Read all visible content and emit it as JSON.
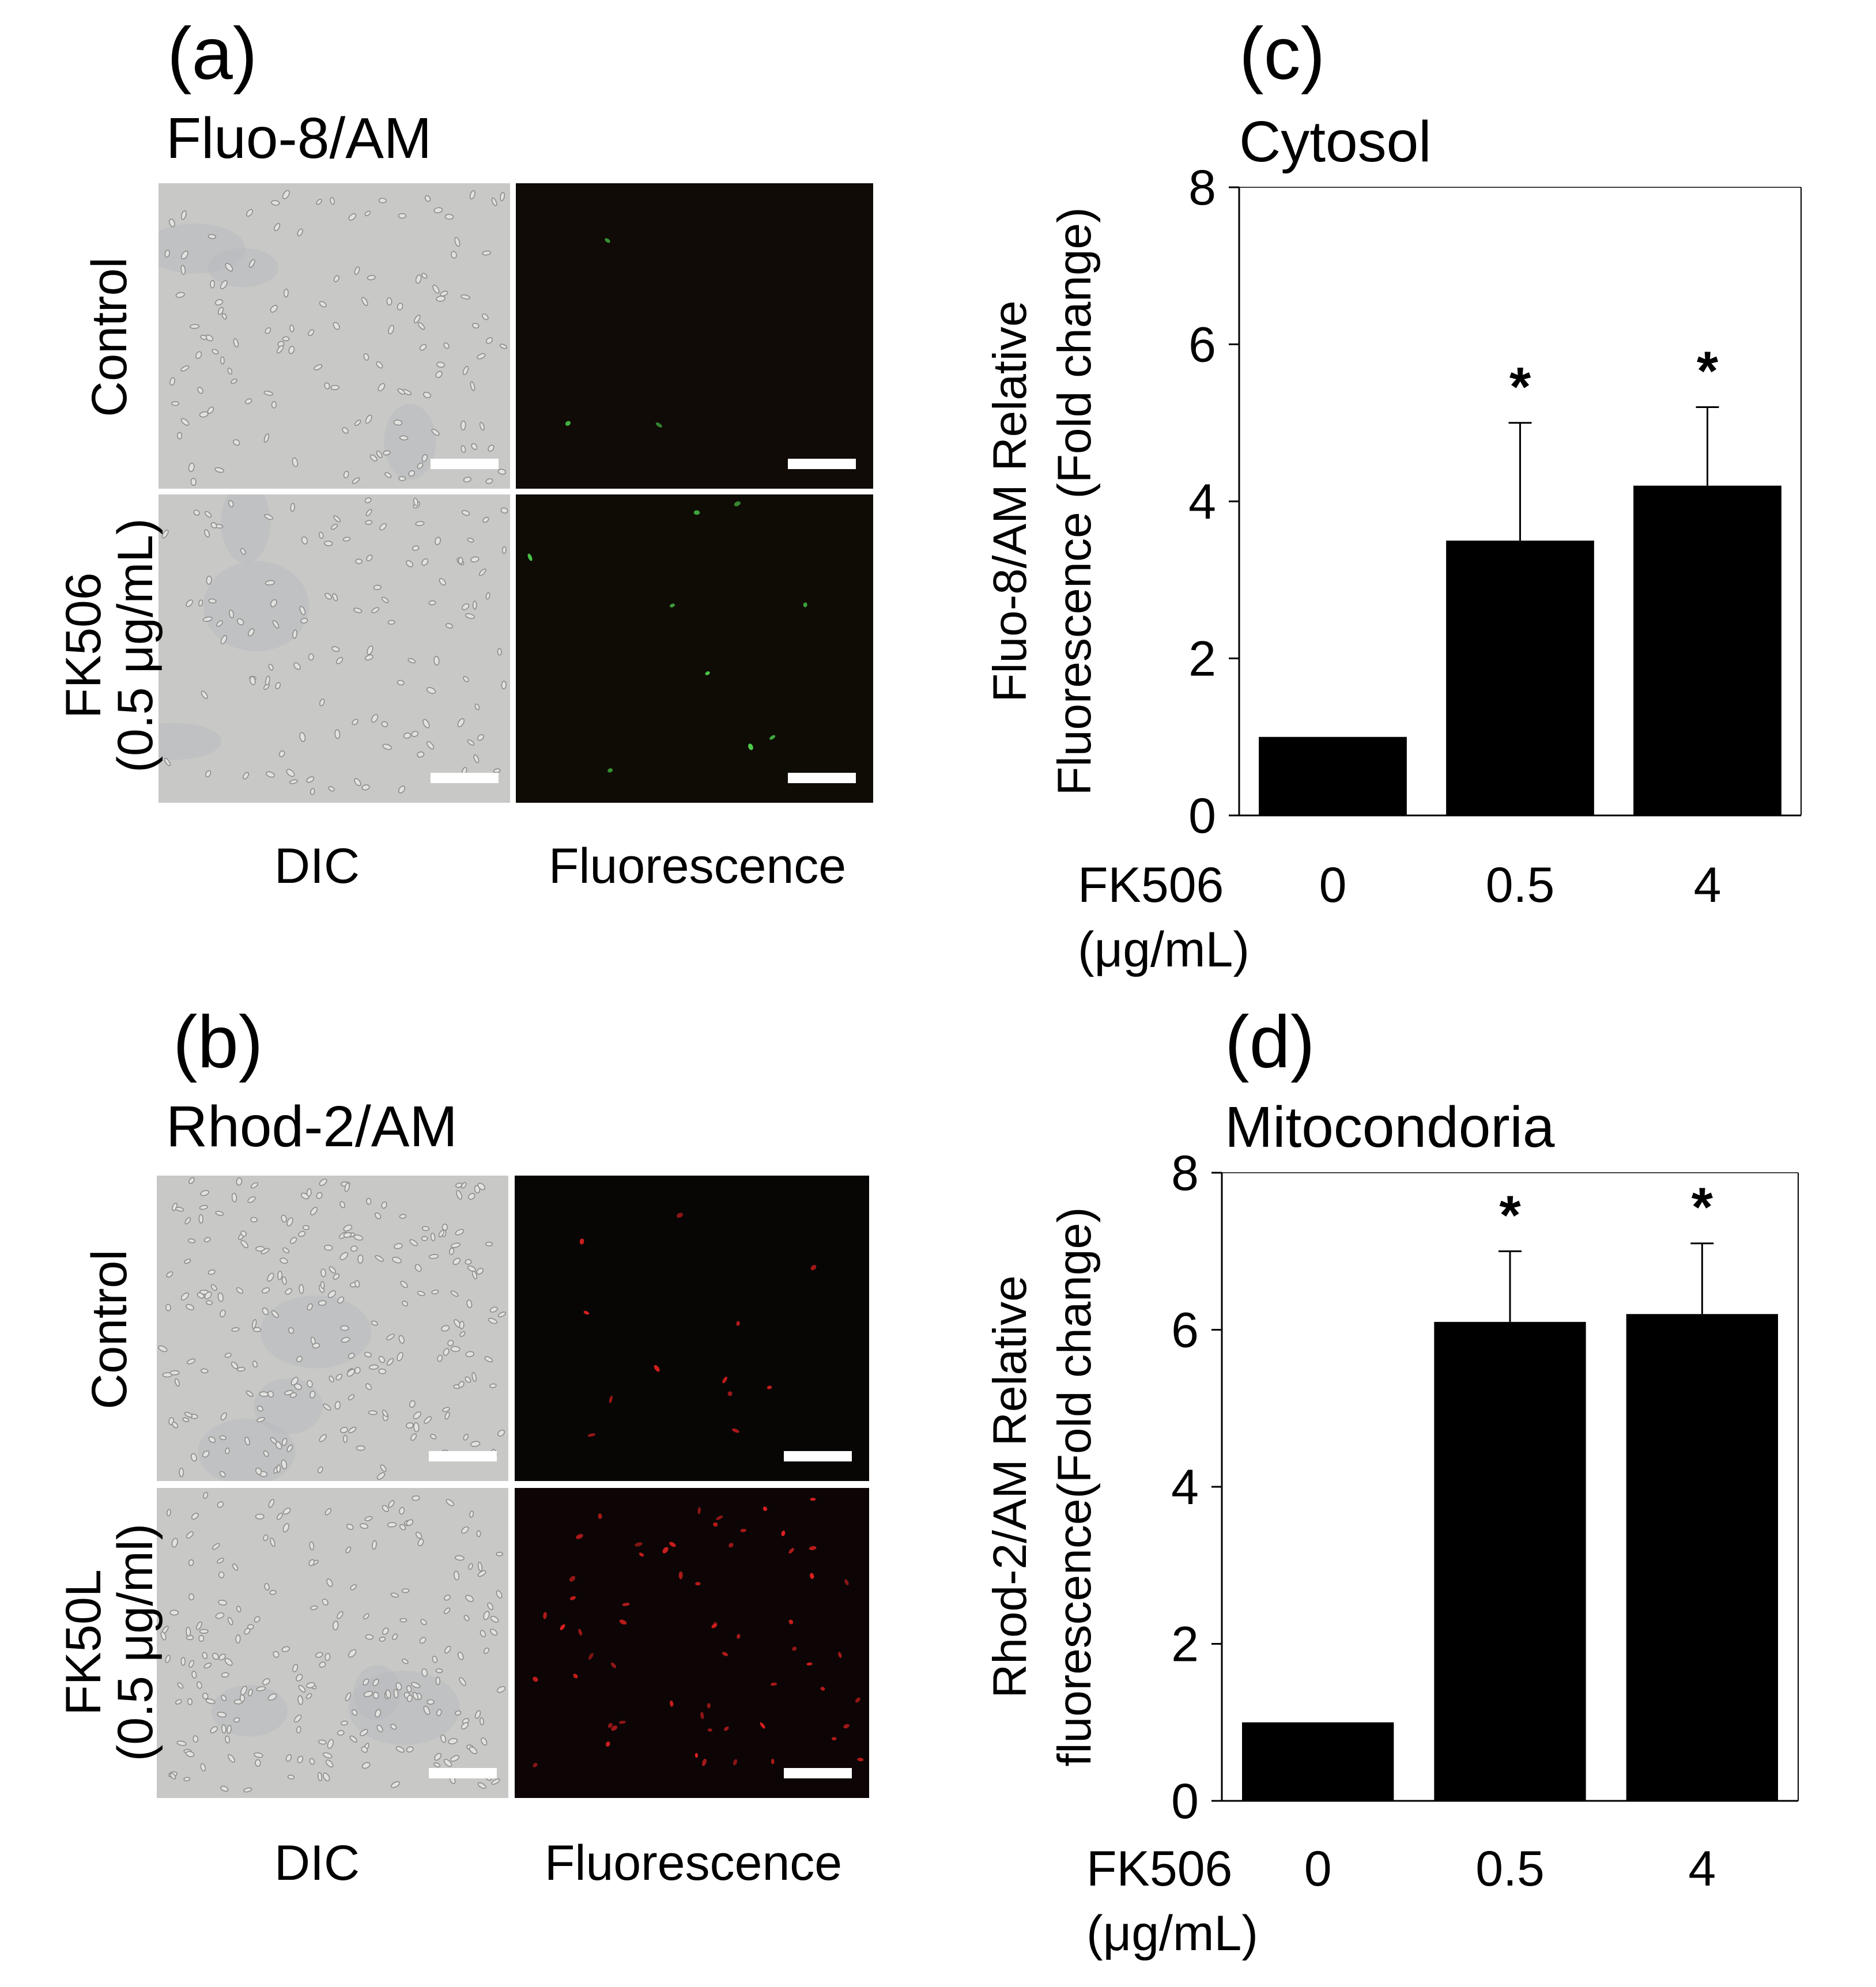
{
  "panel_a": {
    "letter": "(a)",
    "title": "Fluo-8/AM",
    "rows": [
      {
        "label": "Control"
      },
      {
        "label_line1": "FK506",
        "label_line2": "(0.5 μg/mL)"
      }
    ],
    "columns": [
      "DIC",
      "Fluorescence"
    ],
    "fluorescence_color": "#4cd04c"
  },
  "panel_b": {
    "letter": "(b)",
    "title": "Rhod-2/AM",
    "rows": [
      {
        "label": "Control"
      },
      {
        "label_line1": "FK50L",
        "label_line2": "(0.5 μg/ml)"
      }
    ],
    "columns": [
      "DIC",
      "Fluorescence"
    ],
    "fluorescence_color": "#e02020"
  },
  "panel_c": {
    "letter": "(c)"
  },
  "panel_d": {
    "letter": "(d)"
  },
  "chart_data": [
    {
      "type": "bar",
      "title": "Cytosol",
      "ylabel_line1": "Fluo-8/AM Relative",
      "ylabel_line2": "Fluorescence (Fold change)",
      "xlabel_line1": "FK506",
      "xlabel_line2": "(μg/mL)",
      "categories": [
        "0",
        "0.5",
        "4"
      ],
      "values": [
        1.0,
        3.5,
        4.2
      ],
      "errors": [
        0,
        1.5,
        1.0
      ],
      "significance": [
        "",
        "*",
        "*"
      ],
      "ylim": [
        0,
        8
      ],
      "yticks": [
        "0",
        "2",
        "4",
        "6",
        "8"
      ],
      "bar_color": "#000000"
    },
    {
      "type": "bar",
      "title": "Mitocondoria",
      "ylabel_line1": "Rhod-2/AM Relative",
      "ylabel_line2": "fluorescence(Fold change)",
      "xlabel_line1": "FK506",
      "xlabel_line2": "(μg/mL)",
      "categories": [
        "0",
        "0.5",
        "4"
      ],
      "values": [
        1.0,
        6.1,
        6.2
      ],
      "errors": [
        0,
        0.9,
        0.9
      ],
      "significance": [
        "",
        "*",
        "*"
      ],
      "ylim": [
        0,
        8
      ],
      "yticks": [
        "0",
        "2",
        "4",
        "6",
        "8"
      ],
      "bar_color": "#000000"
    }
  ]
}
